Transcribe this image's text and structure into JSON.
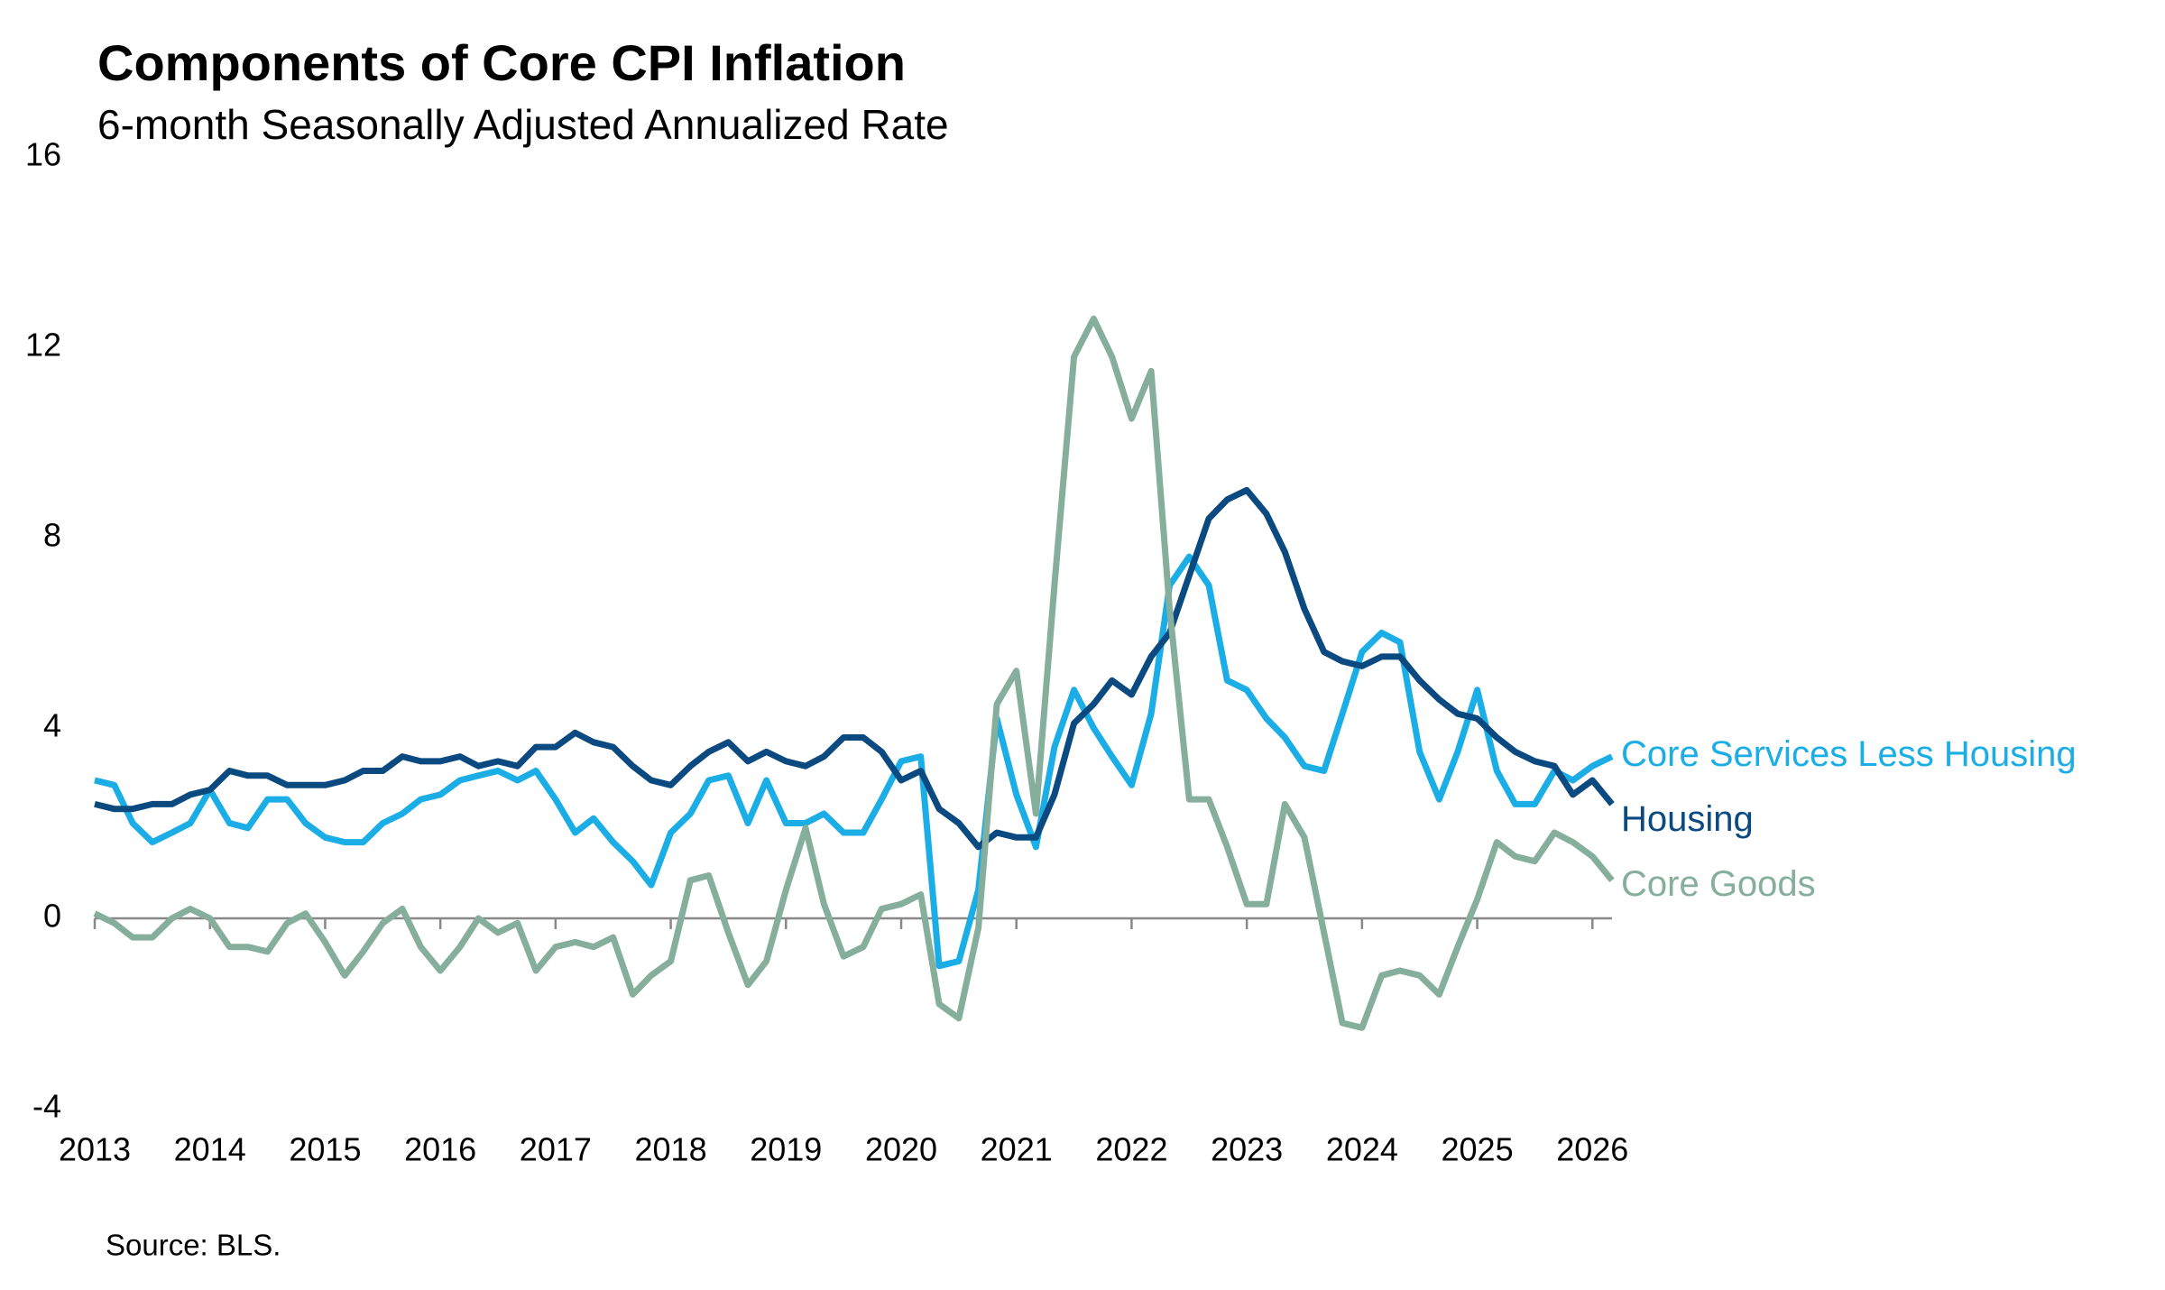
{
  "chart_data": {
    "type": "line",
    "title": "Components of Core CPI Inflation",
    "subtitle": "6-month Seasonally Adjusted Annualized Rate",
    "source": "Source: BLS.",
    "x": [
      2013,
      2013.17,
      2013.33,
      2013.5,
      2013.67,
      2013.83,
      2014,
      2014.17,
      2014.33,
      2014.5,
      2014.67,
      2014.83,
      2015,
      2015.17,
      2015.33,
      2015.5,
      2015.67,
      2015.83,
      2016,
      2016.17,
      2016.33,
      2016.5,
      2016.67,
      2016.83,
      2017,
      2017.17,
      2017.33,
      2017.5,
      2017.67,
      2017.83,
      2018,
      2018.17,
      2018.33,
      2018.5,
      2018.67,
      2018.83,
      2019,
      2019.17,
      2019.33,
      2019.5,
      2019.67,
      2019.83,
      2020,
      2020.17,
      2020.33,
      2020.5,
      2020.67,
      2020.83,
      2021,
      2021.17,
      2021.33,
      2021.5,
      2021.67,
      2021.83,
      2022,
      2022.17,
      2022.33,
      2022.5,
      2022.67,
      2022.83,
      2023,
      2023.17,
      2023.33,
      2023.5,
      2023.67,
      2023.83,
      2024,
      2024.17,
      2024.33,
      2024.5,
      2024.67,
      2024.83,
      2025,
      2025.17,
      2025.33,
      2025.5,
      2025.67,
      2025.83,
      2026,
      2026.17
    ],
    "series": [
      {
        "name": "Core Services Less Housing",
        "color": "#1aade6",
        "values": [
          2.9,
          2.8,
          2.0,
          1.6,
          1.8,
          2.0,
          2.7,
          2.0,
          1.9,
          2.5,
          2.5,
          2.0,
          1.7,
          1.6,
          1.6,
          2.0,
          2.2,
          2.5,
          2.6,
          2.9,
          3.0,
          3.1,
          2.9,
          3.1,
          2.5,
          1.8,
          2.1,
          1.6,
          1.2,
          0.7,
          1.8,
          2.2,
          2.9,
          3.0,
          2.0,
          2.9,
          2.0,
          2.0,
          2.2,
          1.8,
          1.8,
          2.5,
          3.3,
          3.4,
          -1.0,
          -0.9,
          0.6,
          4.2,
          2.6,
          1.5,
          3.6,
          4.8,
          4.0,
          3.4,
          2.8,
          4.3,
          7.0,
          7.6,
          7.0,
          5.0,
          4.8,
          4.2,
          3.8,
          3.2,
          3.1,
          4.3,
          5.6,
          6.0,
          5.8,
          3.5,
          2.5,
          3.5,
          4.8,
          3.1,
          2.4,
          2.4,
          3.1,
          2.9,
          3.2,
          3.4
        ]
      },
      {
        "name": "Housing",
        "color": "#0b4a80",
        "values": [
          2.4,
          2.3,
          2.3,
          2.4,
          2.4,
          2.6,
          2.7,
          3.1,
          3.0,
          3.0,
          2.8,
          2.8,
          2.8,
          2.9,
          3.1,
          3.1,
          3.4,
          3.3,
          3.3,
          3.4,
          3.2,
          3.3,
          3.2,
          3.6,
          3.6,
          3.9,
          3.7,
          3.6,
          3.2,
          2.9,
          2.8,
          3.2,
          3.5,
          3.7,
          3.3,
          3.5,
          3.3,
          3.2,
          3.4,
          3.8,
          3.8,
          3.5,
          2.9,
          3.1,
          2.3,
          2.0,
          1.5,
          1.8,
          1.7,
          1.7,
          2.6,
          4.1,
          4.5,
          5.0,
          4.7,
          5.5,
          6.0,
          7.2,
          8.4,
          8.8,
          9.0,
          8.5,
          7.7,
          6.5,
          5.6,
          5.4,
          5.3,
          5.5,
          5.5,
          5.0,
          4.6,
          4.3,
          4.2,
          3.8,
          3.5,
          3.3,
          3.2,
          2.6,
          2.9,
          2.4
        ]
      },
      {
        "name": "Core Goods",
        "color": "#86ae9c",
        "values": [
          0.1,
          -0.1,
          -0.4,
          -0.4,
          0.0,
          0.2,
          0.0,
          -0.6,
          -0.6,
          -0.7,
          -0.1,
          0.1,
          -0.5,
          -1.2,
          -0.7,
          -0.1,
          0.2,
          -0.6,
          -1.1,
          -0.6,
          0.0,
          -0.3,
          -0.1,
          -1.1,
          -0.6,
          -0.5,
          -0.6,
          -0.4,
          -1.6,
          -1.2,
          -0.9,
          0.8,
          0.9,
          -0.3,
          -1.4,
          -0.9,
          0.6,
          1.9,
          0.3,
          -0.8,
          -0.6,
          0.2,
          0.3,
          0.5,
          -1.8,
          -2.1,
          -0.2,
          4.5,
          5.2,
          2.2,
          7.0,
          11.8,
          12.6,
          11.8,
          10.5,
          11.5,
          6.5,
          2.5,
          2.5,
          1.5,
          0.3,
          0.3,
          2.4,
          1.7,
          -0.3,
          -2.2,
          -2.3,
          -1.2,
          -1.1,
          -1.2,
          -1.6,
          -0.6,
          0.4,
          1.6,
          1.3,
          1.2,
          1.8,
          1.6,
          1.3,
          0.8
        ]
      }
    ],
    "xlim": [
      2013,
      2026.17
    ],
    "xticks": [
      2013,
      2014,
      2015,
      2016,
      2017,
      2018,
      2019,
      2020,
      2021,
      2022,
      2023,
      2024,
      2025,
      2026
    ],
    "ylim": [
      -4,
      16
    ],
    "yticks": [
      -4,
      0,
      4,
      8,
      12,
      16
    ]
  }
}
